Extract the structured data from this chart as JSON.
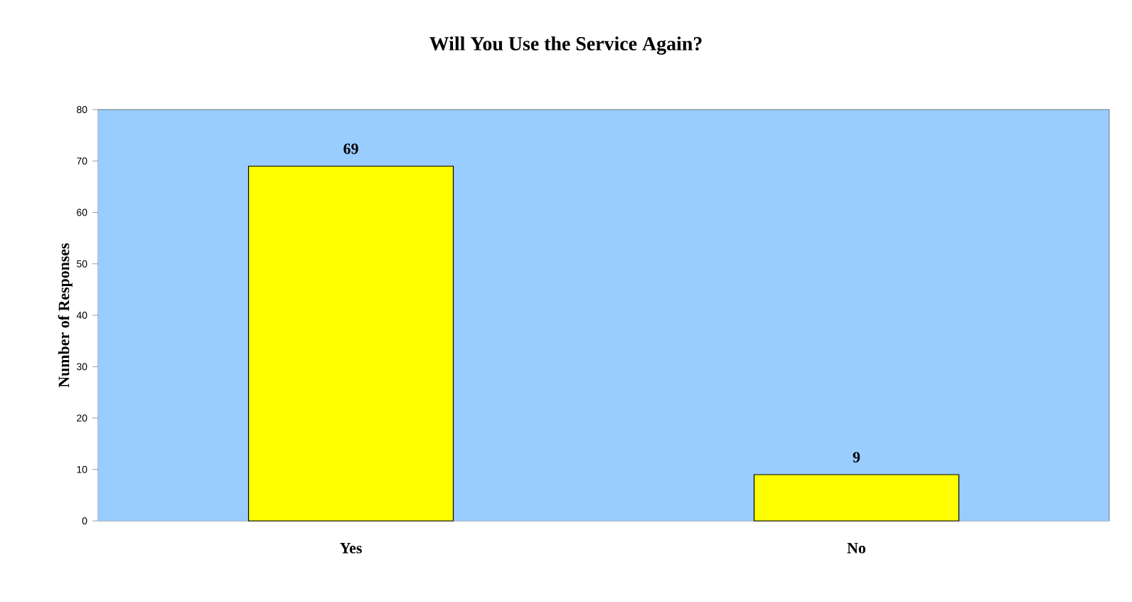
{
  "chart_data": {
    "type": "bar",
    "title": "Will You Use the Service Again?",
    "ylabel": "Number of Responses",
    "categories": [
      "Yes",
      "No"
    ],
    "values": [
      69,
      9
    ],
    "color": "#ffff00",
    "ylim": [
      0,
      80
    ],
    "yticks": [
      0,
      10,
      20,
      30,
      40,
      50,
      60,
      70,
      80
    ],
    "grid": false,
    "data_labels": true
  }
}
